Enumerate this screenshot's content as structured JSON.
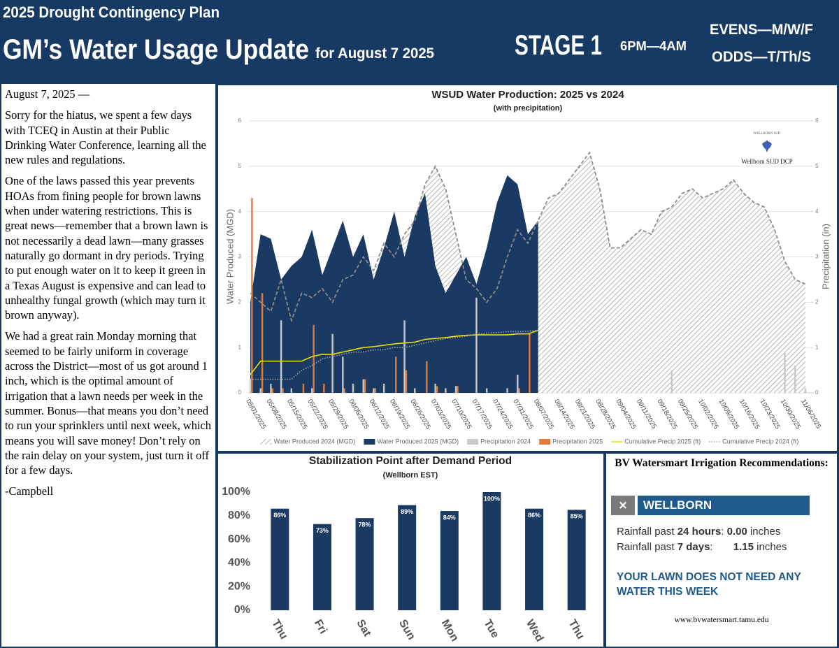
{
  "header": {
    "kicker": "2025 Drought Contingency Plan",
    "title": "GM’s Water Usage Update",
    "title_suffix": "for August 7 2025",
    "stage": "STAGE 1",
    "hours": "6PM—4AM",
    "evens": "EVENS—M/W/F",
    "odds": "ODDS—T/Th/S"
  },
  "article": {
    "date_line": "August 7, 2025 —",
    "paragraphs": [
      "Sorry for the hiatus, we spent a few days with TCEQ in Austin at their Public Drinking Water Conference, learning all the new rules and regulations.",
      "One of the laws passed this year prevents HOAs from fining people for brown lawns when under watering restrictions.  This is great news—remember that a brown lawn is not necessarily a dead lawn—many grasses naturally go dormant in dry periods.  Trying to put enough water on it to keep it green in a Texas August is expensive and can lead to unhealthy fungal growth (which may turn it brown anyway).",
      "We had a great rain Monday morning that seemed to be fairly uniform in coverage across the District—most of us got around 1 inch, which is the optimal amount of irrigation that a lawn needs per week in the summer.  Bonus—that means you don’t need to run your sprinklers until next week, which means you will save money!  Don’t rely on the rain delay on your system, just turn it off for a few days."
    ],
    "signature": "-Campbell"
  },
  "chart_data": [
    {
      "type": "combo",
      "title": "WSUD Water Production: 2025 vs 2024",
      "subtitle": "(with precipitation)",
      "y_label": "Water Produced (MGD)",
      "y2_label": "Precipitation (in)",
      "annotations": [
        "WELLBORN SUD",
        "Wellborn SUD DCP"
      ],
      "categories": [
        "05/01/2025",
        null,
        "05/08/2025",
        null,
        "05/15/2025",
        null,
        "05/22/2025",
        null,
        "05/29/2025",
        null,
        "06/05/2025",
        null,
        "06/12/2025",
        null,
        "06/19/2025",
        null,
        "06/26/2025",
        null,
        "07/03/2025",
        null,
        "07/10/2025",
        null,
        "07/17/2025",
        null,
        "07/24/2025",
        null,
        "07/31/2025",
        null,
        "08/07/2025",
        null,
        "08/14/2025",
        null,
        "08/21/2025",
        null,
        "08/28/2025",
        null,
        "09/04/2025",
        null,
        "09/11/2025",
        null,
        "09/18/2025",
        null,
        "09/25/2025",
        null,
        "10/02/2025",
        null,
        "10/09/2025",
        null,
        "10/16/2025",
        null,
        "10/23/2025",
        null,
        "10/30/2025",
        null,
        "11/06/2025"
      ],
      "ylim": [
        0,
        6
      ],
      "yticks": [
        0,
        1,
        2,
        3,
        4,
        5,
        6
      ],
      "y2lim": [
        0,
        6
      ],
      "y2ticks": [
        0,
        1,
        2,
        3,
        4,
        5,
        6
      ],
      "grid": true,
      "legend": "bottom",
      "series": [
        {
          "name": "Water Produced 2024 (MGD)",
          "kind": "area",
          "fill": "hatched",
          "line": "dashed",
          "color": "#8c8c8c",
          "axis": "y",
          "values": [
            2.2,
            2.0,
            1.8,
            2.5,
            1.6,
            2.2,
            2.1,
            2.3,
            2.0,
            2.5,
            2.6,
            3.0,
            2.7,
            3.3,
            3.0,
            3.5,
            3.8,
            4.6,
            5.0,
            4.5,
            3.5,
            2.5,
            2.3,
            2.0,
            2.3,
            3.0,
            3.6,
            3.3,
            3.8,
            4.3,
            4.4,
            4.7,
            5.0,
            5.3,
            4.5,
            3.2,
            3.2,
            3.4,
            3.6,
            3.5,
            4.0,
            4.1,
            4.4,
            4.5,
            4.3,
            4.4,
            4.5,
            4.7,
            4.4,
            4.2,
            4.1,
            3.6,
            2.9,
            2.5,
            2.4
          ]
        },
        {
          "name": "Water Produced 2025 (MGD)",
          "kind": "area",
          "fill": "solid",
          "line": "none",
          "color": "#1b3a63",
          "axis": "y",
          "values": [
            2.0,
            3.5,
            3.4,
            2.5,
            2.8,
            3.0,
            3.6,
            2.6,
            3.2,
            3.8,
            3.0,
            3.5,
            2.5,
            3.2,
            4.0,
            3.0,
            3.9,
            4.4,
            2.8,
            2.2,
            2.6,
            3.0,
            2.4,
            3.2,
            4.2,
            4.8,
            4.6,
            3.5,
            3.8,
            null,
            null,
            null,
            null,
            null,
            null,
            null,
            null,
            null,
            null,
            null,
            null,
            null,
            null,
            null,
            null,
            null,
            null,
            null,
            null,
            null,
            null,
            null,
            null,
            null,
            null
          ]
        },
        {
          "name": "Precipitation 2024",
          "kind": "bar",
          "color": "#c8c8c8",
          "axis": "y2",
          "values": [
            0.3,
            0.1,
            0.2,
            1.6,
            0.1,
            0,
            0.1,
            0,
            1.3,
            0.8,
            0.2,
            0.3,
            0.1,
            0.2,
            0,
            1.6,
            0.1,
            0,
            0.2,
            0.1,
            0.15,
            0,
            2.1,
            0.1,
            0,
            0.1,
            0.4,
            0,
            0,
            0,
            0,
            0.05,
            0,
            0.1,
            0,
            0,
            0,
            0,
            0,
            0,
            0,
            0.5,
            0,
            0,
            0,
            0,
            0,
            0,
            0,
            0,
            0,
            0,
            0.9,
            0.6,
            0.1
          ]
        },
        {
          "name": "Precipitation 2025",
          "kind": "bar",
          "color": "#e07b39",
          "axis": "y2",
          "values": [
            4.3,
            2.2,
            0.1,
            0.1,
            0,
            0.2,
            1.5,
            0.2,
            0,
            0.1,
            0,
            0.3,
            0.1,
            0,
            0.8,
            0.5,
            0,
            0.7,
            0.15,
            0,
            0.15,
            0,
            0,
            0,
            0,
            0,
            0.1,
            1.3,
            0,
            null,
            null,
            null,
            null,
            null,
            null,
            null,
            null,
            null,
            null,
            null,
            null,
            null,
            null,
            null,
            null,
            null,
            null,
            null,
            null,
            null,
            null,
            null,
            null,
            null,
            null
          ]
        },
        {
          "name": "Cumulative Precip 2025 (ft)",
          "kind": "line",
          "line": "solid",
          "color": "#f0e000",
          "axis": "y2",
          "values": [
            0.4,
            0.7,
            0.7,
            0.7,
            0.7,
            0.7,
            0.8,
            0.85,
            0.85,
            0.9,
            0.95,
            1.0,
            1.02,
            1.05,
            1.08,
            1.1,
            1.12,
            1.18,
            1.2,
            1.22,
            1.25,
            1.27,
            1.28,
            1.28,
            1.28,
            1.28,
            1.3,
            1.3,
            1.38,
            null,
            null,
            null,
            null,
            null,
            null,
            null,
            null,
            null,
            null,
            null,
            null,
            null,
            null,
            null,
            null,
            null,
            null,
            null,
            null,
            null,
            null,
            null,
            null,
            null,
            null
          ]
        },
        {
          "name": "Cumulative Precip 2024 (ft)",
          "kind": "line",
          "line": "dotted",
          "color": "#a0a0a0",
          "axis": "y2",
          "values": [
            0.3,
            0.3,
            0.3,
            0.3,
            0.3,
            0.5,
            0.6,
            0.75,
            0.8,
            0.85,
            0.9,
            0.9,
            0.95,
            0.95,
            1.0,
            1.0,
            1.05,
            1.1,
            1.15,
            1.2,
            1.22,
            1.25,
            1.3,
            1.32,
            1.33,
            1.35,
            1.35,
            1.36,
            1.38,
            null,
            null,
            null,
            null,
            null,
            null,
            null,
            null,
            null,
            null,
            null,
            null,
            null,
            null,
            null,
            null,
            null,
            null,
            null,
            null,
            null,
            null,
            null,
            null,
            null,
            null
          ]
        }
      ]
    },
    {
      "type": "bar",
      "title": "Stabilization Point after Demand Period",
      "subtitle": "(Wellborn EST)",
      "categories": [
        "Thu",
        "Fri",
        "Sat",
        "Sun",
        "Mon",
        "Tue",
        "Wed",
        "Thu"
      ],
      "values": [
        86,
        73,
        78,
        89,
        84,
        100,
        86,
        85
      ],
      "value_labels": [
        "86%",
        "73%",
        "78%",
        "89%",
        "84%",
        "100%",
        "86%",
        "85%"
      ],
      "color": "#1b3a63",
      "ylim": [
        0,
        100
      ],
      "yticks": [
        {
          "value": 0,
          "label": "0%"
        },
        {
          "value": 20,
          "label": "20%"
        },
        {
          "value": 40,
          "label": "40%"
        },
        {
          "value": 60,
          "label": "60%"
        },
        {
          "value": 80,
          "label": "80%"
        },
        {
          "value": 100,
          "label": "100%"
        }
      ],
      "grid": false
    }
  ],
  "irrigation": {
    "heading": "BV Watersmart Irrigation Recommendations:",
    "close": "×",
    "location": "WELLBORN",
    "rows": [
      {
        "prefix": "Rainfall past",
        "period": "24 hours",
        "amount": "0.00",
        "unit": "inches"
      },
      {
        "prefix": "Rainfall past",
        "period": "7 days",
        "amount": "1.15",
        "unit": "inches"
      }
    ],
    "message": "YOUR LAWN DOES NOT NEED ANY WATER THIS WEEK",
    "url": "www.bvwatersmart.tamu.edu"
  }
}
